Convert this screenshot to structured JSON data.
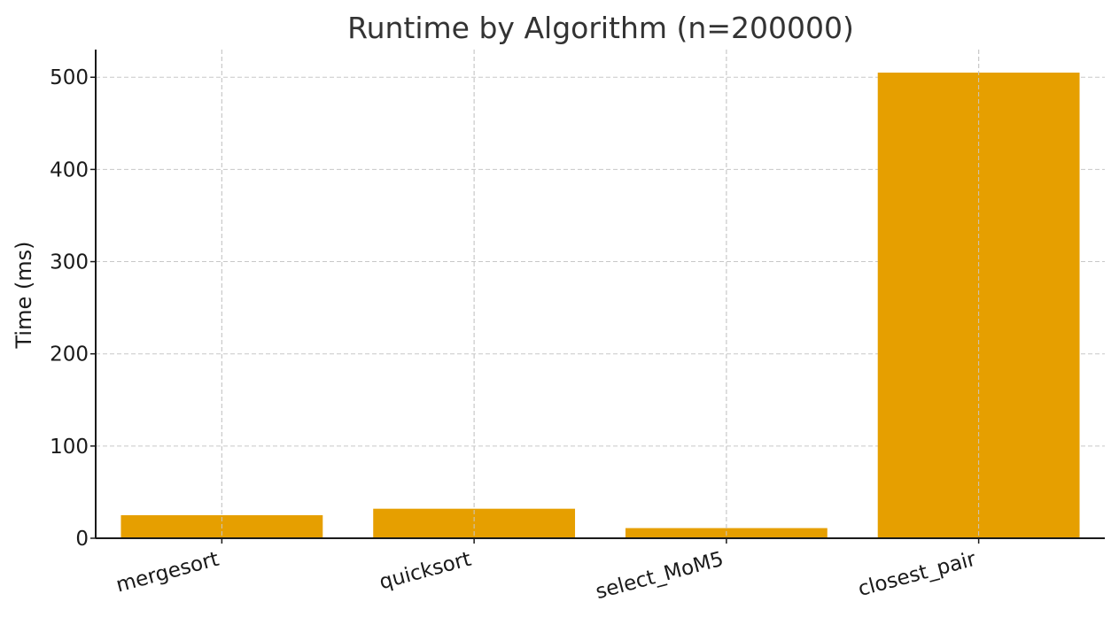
{
  "chart_data": {
    "type": "bar",
    "title": "Runtime by Algorithm (n=200000)",
    "xlabel": "",
    "ylabel": "Time (ms)",
    "categories": [
      "mergesort",
      "quicksort",
      "select_MoM5",
      "closest_pair"
    ],
    "values": [
      25,
      32,
      11,
      505
    ],
    "ylim": [
      0,
      530
    ],
    "yticks": [
      0,
      100,
      200,
      300,
      400,
      500
    ],
    "grid": true,
    "colors": {
      "bar": "#e69f00",
      "grid": "#c8c8c8",
      "axis": "#1a1a1a",
      "text": "#333333"
    }
  }
}
